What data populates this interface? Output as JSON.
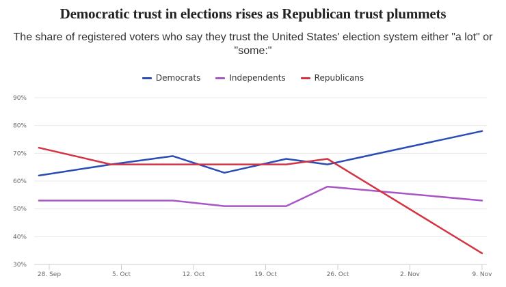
{
  "chart_data": {
    "type": "line",
    "title": "Democratic trust in elections rises as Republican trust plummets",
    "subtitle": "The share of registered voters who say they trust the United States' election system either \"a lot\" or \"some:\"",
    "xlabel": "",
    "ylabel": "",
    "x_ticks": [
      {
        "label": "28. Sep",
        "day": 0
      },
      {
        "label": "5. Oct",
        "day": 7
      },
      {
        "label": "12. Oct",
        "day": 14
      },
      {
        "label": "19. Oct",
        "day": 21
      },
      {
        "label": "26. Oct",
        "day": 28
      },
      {
        "label": "2. Nov",
        "day": 35
      },
      {
        "label": "9. Nov",
        "day": 42
      }
    ],
    "x_range_days": [
      -1,
      42.5
    ],
    "x_note": "x values are days since 28 Sep",
    "y_ticks": [
      30,
      40,
      50,
      60,
      70,
      80,
      90
    ],
    "y_tick_suffix": "%",
    "ylim": [
      30,
      90
    ],
    "grid": true,
    "legend_position": "top-center",
    "series": [
      {
        "name": "Democrats",
        "color": "#2a4db5",
        "x": [
          -1,
          6,
          12,
          17,
          23,
          27,
          42
        ],
        "values": [
          62,
          66,
          69,
          63,
          68,
          66,
          78
        ]
      },
      {
        "name": "Independents",
        "color": "#a855c5",
        "x": [
          -1,
          6,
          12,
          17,
          23,
          27,
          42
        ],
        "values": [
          53,
          53,
          53,
          51,
          51,
          58,
          53
        ]
      },
      {
        "name": "Republicans",
        "color": "#d33342",
        "x": [
          -1,
          6,
          12,
          17,
          23,
          27,
          42
        ],
        "values": [
          72,
          66,
          66,
          66,
          66,
          68,
          34
        ]
      }
    ]
  }
}
